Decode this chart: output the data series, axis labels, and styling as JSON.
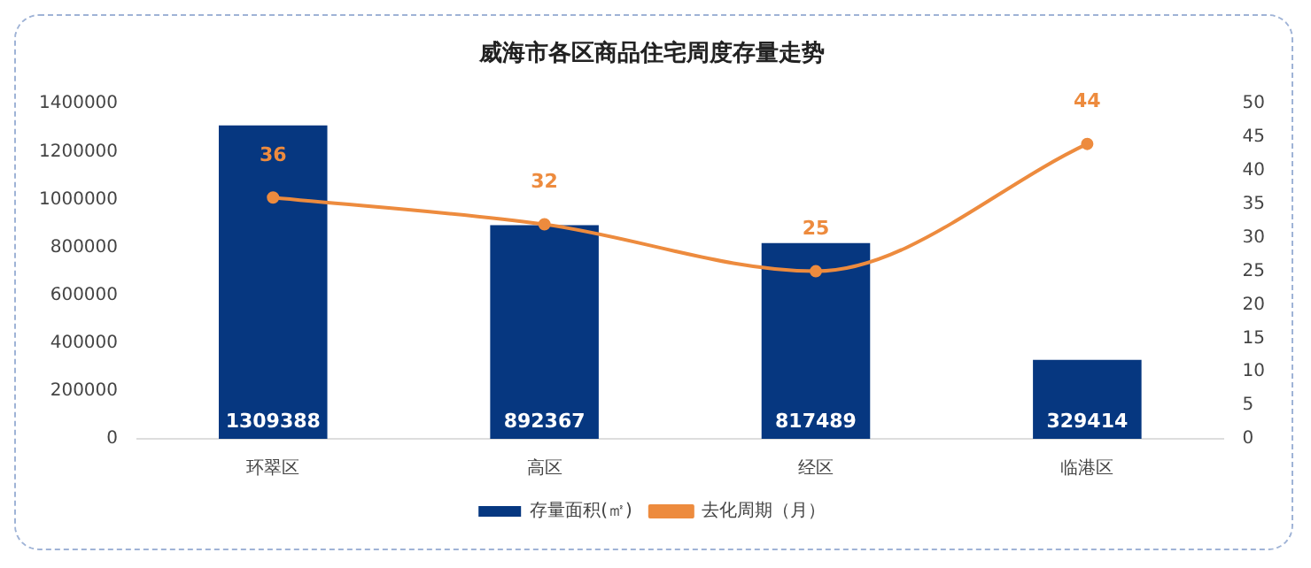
{
  "chart_data": {
    "type": "bar",
    "title": "威海市各区商品住宅周度存量走势",
    "categories": [
      "环翠区",
      "高区",
      "经区",
      "临港区"
    ],
    "series": [
      {
        "name": "存量面积(㎡)",
        "color": "#063780",
        "values": [
          1309388,
          892367,
          817489,
          329414
        ]
      },
      {
        "name": "去化周期（月）",
        "type": "line",
        "axis": "y2",
        "color": "#ed8b3e",
        "values": [
          36,
          32,
          25,
          44
        ]
      }
    ],
    "ylim": [
      0,
      1400000
    ],
    "yticks": [
      0,
      200000,
      400000,
      600000,
      800000,
      1000000,
      1200000,
      1400000
    ],
    "y2lim": [
      0,
      50
    ],
    "y2ticks": [
      0,
      5,
      10,
      15,
      20,
      25,
      30,
      35,
      40,
      45,
      50
    ],
    "grid": false,
    "legend": "bottom",
    "marker": "circle",
    "data_labels": true
  }
}
